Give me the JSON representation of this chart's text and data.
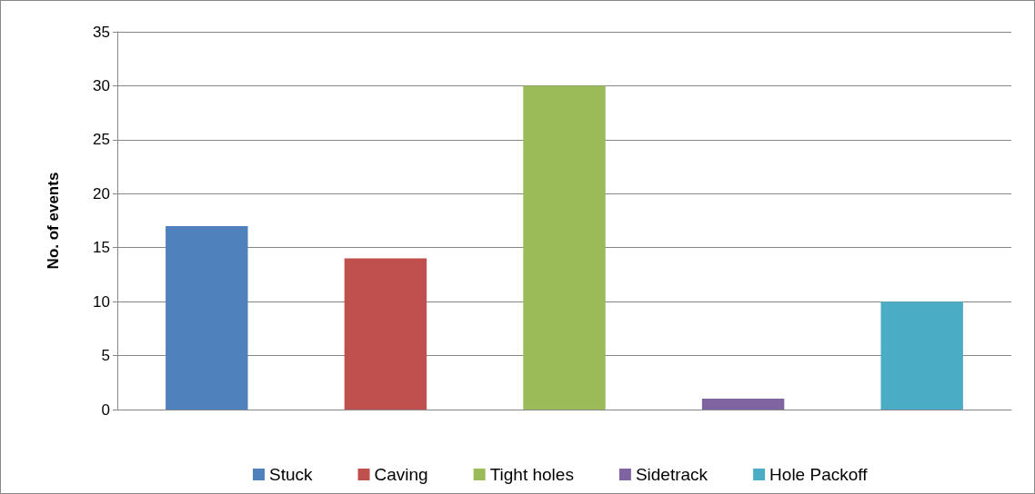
{
  "chart_data": {
    "type": "bar",
    "ylabel": "No. of events",
    "categories": [
      null,
      null,
      null,
      null,
      null
    ],
    "series": [
      {
        "name": "Stuck",
        "color": "#4f81bd",
        "values": [
          17,
          null,
          null,
          null,
          null
        ]
      },
      {
        "name": "Caving",
        "color": "#c0504d",
        "values": [
          null,
          14,
          null,
          null,
          null
        ]
      },
      {
        "name": "Tight holes",
        "color": "#9bbb59",
        "values": [
          null,
          null,
          30,
          null,
          null
        ]
      },
      {
        "name": "Sidetrack",
        "color": "#8064a2",
        "values": [
          null,
          null,
          null,
          1,
          null
        ]
      },
      {
        "name": "Hole Packoff",
        "color": "#4bacc6",
        "values": [
          null,
          null,
          null,
          null,
          10
        ]
      }
    ],
    "ylim": [
      0,
      35
    ],
    "yticks": [
      0,
      5,
      10,
      15,
      20,
      25,
      30,
      35
    ],
    "grid": "y",
    "legend": "bottom"
  }
}
